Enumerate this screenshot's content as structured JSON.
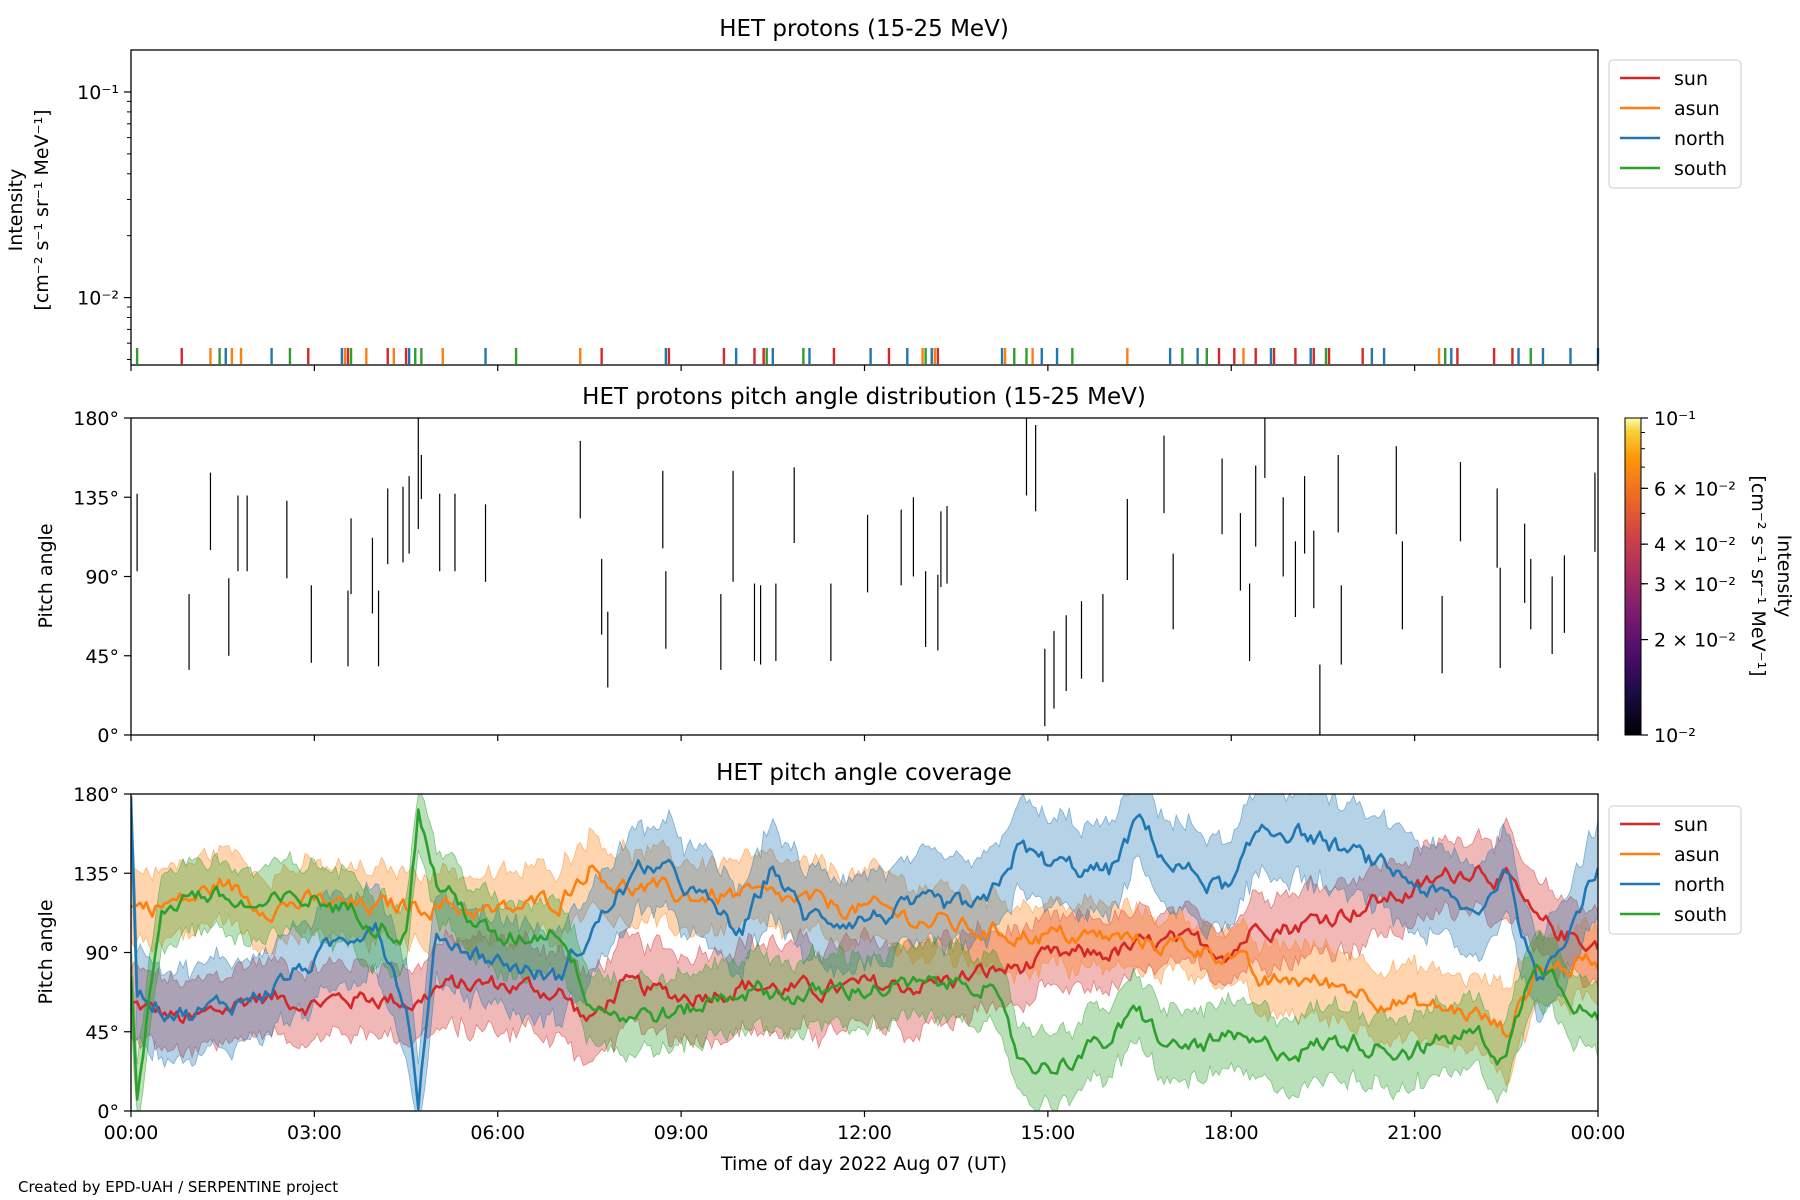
{
  "credit": "Created by EPD-UAH / SERPENTINE project",
  "colors": {
    "sun": "#d62728",
    "asun": "#ff7f0e",
    "north": "#1f77b4",
    "south": "#2ca02c"
  },
  "time_ticks": [
    "00:00",
    "03:00",
    "06:00",
    "09:00",
    "12:00",
    "15:00",
    "18:00",
    "21:00",
    "00:00"
  ],
  "chart_data": [
    {
      "type": "line",
      "title": "HET protons (15-25 MeV)",
      "ylabel": "Intensity",
      "ylabel_unit_html": "[cm⁻² s⁻¹ sr⁻¹ MeV⁻¹]",
      "yscale": "log",
      "ylim": [
        0.0047,
        0.16
      ],
      "y_ticks": [
        "10⁻¹",
        "10⁻²"
      ],
      "y_tick_values": [
        0.1,
        0.01
      ],
      "xlim_hours": [
        0,
        24
      ],
      "legend": {
        "placement": "outside-right-top",
        "entries": [
          "sun",
          "asun",
          "north",
          "south"
        ]
      },
      "series": [
        {
          "name": "sun",
          "spike_hours": [
            0.83,
            2.9,
            3.55,
            4.2,
            4.5,
            7.7,
            8.8,
            9.7,
            10.2,
            10.35,
            11.5,
            12.4,
            13.2,
            17.8,
            18.05,
            18.4,
            18.7,
            19.05,
            19.35,
            19.6,
            20.15,
            21.7,
            22.3,
            22.6
          ]
        },
        {
          "name": "asun",
          "spike_hours": [
            1.3,
            1.65,
            1.8,
            3.5,
            3.85,
            4.3,
            5.1,
            7.35,
            12.95,
            13.15,
            14.3,
            14.75,
            16.3,
            18.2,
            21.4
          ]
        },
        {
          "name": "north",
          "spike_hours": [
            1.55,
            2.3,
            3.45,
            4.55,
            5.8,
            8.75,
            9.9,
            10.5,
            11.1,
            12.1,
            12.7,
            13.1,
            14.25,
            14.9,
            15.15,
            17.0,
            17.45,
            18.65,
            19.3,
            20.3,
            20.5,
            21.6,
            22.7,
            23.1,
            23.55,
            24.0
          ]
        },
        {
          "name": "south",
          "spike_hours": [
            0.1,
            1.45,
            2.6,
            3.6,
            4.65,
            4.75,
            6.3,
            10.4,
            11.0,
            13.0,
            14.45,
            14.65,
            15.4,
            17.2,
            17.6,
            19.55,
            21.5,
            22.9
          ]
        }
      ]
    },
    {
      "type": "heatmap",
      "title": "HET protons pitch angle distribution (15-25 MeV)",
      "ylabel": "Pitch angle",
      "ylim": [
        0,
        180
      ],
      "y_ticks": [
        "0°",
        "45°",
        "90°",
        "135°",
        "180°"
      ],
      "y_tick_values": [
        0,
        45,
        90,
        135,
        180
      ],
      "xlim_hours": [
        0,
        24
      ],
      "colorbar": {
        "label": "Intensity",
        "unit_html": "[cm⁻² s⁻¹ sr⁻¹ MeV⁻¹]",
        "scale": "log",
        "range": [
          0.01,
          0.1
        ],
        "ticks": [
          "10⁻²",
          "2 × 10⁻²",
          "3 × 10⁻²",
          "4 × 10⁻²",
          "6 × 10⁻²",
          "10⁻¹"
        ],
        "tick_values": [
          0.01,
          0.02,
          0.03,
          0.04,
          0.06,
          0.1
        ]
      },
      "segments": [
        [
          0.1,
          93,
          137
        ],
        [
          0.95,
          37,
          80
        ],
        [
          1.3,
          105,
          149
        ],
        [
          1.6,
          45,
          89
        ],
        [
          1.75,
          93,
          136
        ],
        [
          1.9,
          93,
          136
        ],
        [
          2.55,
          89,
          133
        ],
        [
          2.95,
          41,
          85
        ],
        [
          3.55,
          39,
          82
        ],
        [
          3.6,
          80,
          123
        ],
        [
          3.95,
          69,
          112
        ],
        [
          4.05,
          39,
          82
        ],
        [
          4.2,
          97,
          140
        ],
        [
          4.45,
          98,
          141
        ],
        [
          4.55,
          103,
          147
        ],
        [
          4.7,
          117,
          180
        ],
        [
          4.75,
          134,
          159
        ],
        [
          5.05,
          93,
          137
        ],
        [
          5.3,
          93,
          137
        ],
        [
          5.8,
          87,
          131
        ],
        [
          7.35,
          123,
          167
        ],
        [
          7.7,
          57,
          100
        ],
        [
          7.8,
          27,
          70
        ],
        [
          8.7,
          106,
          150
        ],
        [
          8.75,
          49,
          93
        ],
        [
          9.65,
          37,
          80
        ],
        [
          9.85,
          87,
          150
        ],
        [
          10.2,
          42,
          86
        ],
        [
          10.3,
          40,
          85
        ],
        [
          10.55,
          42,
          86
        ],
        [
          10.85,
          109,
          152
        ],
        [
          11.45,
          42,
          86
        ],
        [
          12.05,
          81,
          125
        ],
        [
          12.6,
          85,
          128
        ],
        [
          12.8,
          90,
          135
        ],
        [
          13.0,
          50,
          93
        ],
        [
          13.2,
          48,
          91
        ],
        [
          13.25,
          84,
          127
        ],
        [
          13.35,
          86,
          130
        ],
        [
          14.65,
          136,
          180
        ],
        [
          14.8,
          127,
          176
        ],
        [
          14.95,
          5,
          49
        ],
        [
          15.1,
          15,
          59
        ],
        [
          15.3,
          25,
          68
        ],
        [
          15.55,
          32,
          76
        ],
        [
          15.9,
          30,
          80
        ],
        [
          16.3,
          88,
          134
        ],
        [
          16.9,
          126,
          170
        ],
        [
          17.05,
          60,
          103
        ],
        [
          17.85,
          114,
          157
        ],
        [
          18.15,
          82,
          126
        ],
        [
          18.3,
          42,
          86
        ],
        [
          18.4,
          107,
          153
        ],
        [
          18.55,
          146,
          190
        ],
        [
          18.85,
          90,
          135
        ],
        [
          19.05,
          67,
          110
        ],
        [
          19.2,
          103,
          147
        ],
        [
          19.35,
          72,
          116
        ],
        [
          19.45,
          0,
          40
        ],
        [
          19.75,
          115,
          159
        ],
        [
          19.8,
          40,
          85
        ],
        [
          20.7,
          114,
          164
        ],
        [
          20.8,
          60,
          110
        ],
        [
          21.45,
          35,
          79
        ],
        [
          21.75,
          110,
          155
        ],
        [
          22.35,
          95,
          140
        ],
        [
          22.4,
          38,
          95
        ],
        [
          22.8,
          75,
          120
        ],
        [
          22.9,
          60,
          100
        ],
        [
          23.25,
          46,
          90
        ],
        [
          23.45,
          58,
          102
        ],
        [
          23.95,
          104,
          149
        ]
      ]
    },
    {
      "type": "area",
      "title": "HET pitch angle coverage",
      "xlabel": "Time of day 2022 Aug 07 (UT)",
      "ylabel": "Pitch angle",
      "ylim": [
        0,
        180
      ],
      "y_ticks": [
        "0°",
        "45°",
        "90°",
        "135°",
        "180°"
      ],
      "y_tick_values": [
        0,
        45,
        90,
        135,
        180
      ],
      "xlim_hours": [
        0,
        24
      ],
      "legend": {
        "placement": "outside-right-top",
        "entries": [
          "sun",
          "asun",
          "north",
          "south"
        ]
      },
      "series": [
        {
          "name": "sun",
          "x": [
            0,
            1,
            2,
            3,
            4,
            4.7,
            5,
            6,
            7,
            7.5,
            8,
            9,
            10,
            11,
            12,
            13,
            14,
            15,
            16,
            17,
            18,
            18.5,
            19,
            20,
            21,
            22,
            22.5,
            23,
            24
          ],
          "center": [
            60,
            50,
            65,
            62,
            65,
            62,
            70,
            72,
            68,
            50,
            70,
            65,
            72,
            68,
            70,
            72,
            78,
            85,
            90,
            95,
            92,
            108,
            105,
            115,
            125,
            140,
            132,
            105,
            95
          ],
          "half": [
            20,
            20,
            20,
            20,
            20,
            20,
            25,
            25,
            25,
            25,
            25,
            25,
            25,
            25,
            25,
            25,
            22,
            20,
            20,
            15,
            15,
            20,
            20,
            20,
            20,
            20,
            25,
            20,
            20
          ]
        },
        {
          "name": "asun",
          "x": [
            0,
            1,
            1.5,
            2,
            3,
            4,
            5,
            6,
            7,
            7.5,
            8,
            9,
            10,
            11,
            12,
            13,
            14,
            15,
            16,
            17,
            18,
            18.5,
            19,
            20,
            21,
            22,
            22.5,
            23,
            24
          ],
          "center": [
            115,
            120,
            130,
            118,
            118,
            115,
            118,
            112,
            120,
            140,
            128,
            122,
            122,
            118,
            115,
            108,
            102,
            100,
            98,
            95,
            90,
            70,
            75,
            70,
            60,
            55,
            45,
            80,
            85
          ],
          "half": [
            20,
            20,
            20,
            20,
            20,
            20,
            20,
            20,
            20,
            20,
            20,
            20,
            20,
            20,
            20,
            20,
            20,
            18,
            18,
            15,
            15,
            20,
            20,
            20,
            20,
            20,
            25,
            20,
            20
          ]
        },
        {
          "name": "north",
          "x": [
            0,
            0.1,
            0.5,
            1,
            2,
            3,
            4,
            4.5,
            4.7,
            5,
            6,
            7,
            8,
            8.5,
            9,
            10,
            10.5,
            11,
            12,
            13,
            14,
            14.5,
            15,
            16,
            16.5,
            17,
            18,
            18.5,
            19,
            20,
            21,
            22,
            22.5,
            23,
            24
          ],
          "center": [
            175,
            70,
            60,
            55,
            65,
            85,
            110,
            60,
            5,
            100,
            85,
            75,
            125,
            140,
            130,
            100,
            140,
            110,
            110,
            115,
            115,
            150,
            140,
            135,
            165,
            140,
            125,
            160,
            160,
            145,
            130,
            110,
            140,
            70,
            140
          ],
          "half": [
            25,
            25,
            25,
            25,
            25,
            25,
            25,
            25,
            25,
            25,
            25,
            25,
            25,
            25,
            25,
            25,
            25,
            25,
            25,
            25,
            25,
            25,
            25,
            25,
            25,
            25,
            25,
            25,
            25,
            25,
            25,
            25,
            25,
            25,
            25
          ]
        },
        {
          "name": "south",
          "x": [
            0,
            0.1,
            0.5,
            1,
            2,
            3,
            4,
            4.5,
            4.7,
            5,
            6,
            7,
            7.5,
            8,
            9,
            10,
            11,
            12,
            13,
            14,
            14.5,
            15,
            16,
            16.5,
            17,
            18,
            18.5,
            19,
            20,
            21,
            22,
            22.5,
            23,
            24
          ],
          "center": [
            80,
            5,
            115,
            125,
            115,
            120,
            110,
            100,
            170,
            130,
            95,
            105,
            65,
            55,
            55,
            70,
            65,
            70,
            70,
            75,
            30,
            25,
            40,
            55,
            35,
            40,
            35,
            35,
            40,
            35,
            45,
            30,
            90,
            50
          ],
          "half": [
            20,
            20,
            20,
            20,
            20,
            20,
            20,
            20,
            20,
            20,
            20,
            20,
            20,
            20,
            20,
            20,
            20,
            20,
            20,
            20,
            20,
            20,
            20,
            20,
            20,
            20,
            20,
            20,
            20,
            20,
            20,
            20,
            20,
            20
          ]
        }
      ]
    }
  ]
}
